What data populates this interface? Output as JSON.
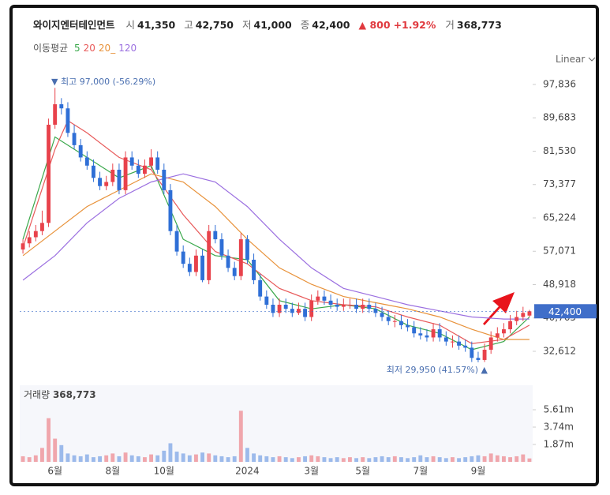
{
  "header": {
    "name": "와이지엔터테인먼트",
    "fields": [
      {
        "label": "시",
        "value": "41,350"
      },
      {
        "label": "고",
        "value": "42,750"
      },
      {
        "label": "저",
        "value": "41,000"
      },
      {
        "label": "종",
        "value": "42,400"
      }
    ],
    "change": "▲ 800",
    "change_pct": "+1.92%",
    "volume_label": "거",
    "volume": "368,773"
  },
  "scale_mode": "Linear",
  "chart_data": [
    {
      "type": "candlestick",
      "ma_label": "이동평균",
      "up_color": "#e8424b",
      "down_color": "#2f6fd6",
      "ylim": [
        25858,
        102081
      ],
      "yticks": [
        {
          "value": 97836,
          "label": "97,836"
        },
        {
          "value": 89683,
          "label": "89,683"
        },
        {
          "value": 81530,
          "label": "81,530"
        },
        {
          "value": 73377,
          "label": "73,377"
        },
        {
          "value": 65224,
          "label": "65,224"
        },
        {
          "value": 57071,
          "label": "57,071"
        },
        {
          "value": 48918,
          "label": "48,918"
        },
        {
          "value": 40765,
          "label": "40,765"
        },
        {
          "value": 32612,
          "label": "32,612"
        }
      ],
      "last_price": {
        "value": 42400,
        "label": "42,400",
        "color": "#3f6ec9"
      },
      "annotations": [
        "▼ 최고 97,000 (-56.29%)",
        "최저 29,950 (41.57%) ▲"
      ],
      "open": [
        57500,
        59000,
        60500,
        62000,
        64000,
        88000,
        93000,
        92000,
        86000,
        83000,
        80000,
        78000,
        75000,
        73000,
        74000,
        77000,
        72000,
        80000,
        78000,
        76000,
        78000,
        80000,
        77000,
        72000,
        62000,
        57000,
        54000,
        52000,
        56000,
        50000,
        62000,
        60000,
        56000,
        53000,
        51000,
        60000,
        55000,
        50000,
        46000,
        44000,
        42000,
        44000,
        43000,
        42000,
        43000,
        41000,
        45000,
        46000,
        45000,
        44000,
        43500,
        44000,
        44000,
        43000,
        44000,
        43000,
        42000,
        41000,
        40000,
        40000,
        39000,
        38500,
        37000,
        36500,
        36000,
        38000,
        36000,
        35000,
        35000,
        34000,
        33500,
        31000,
        30500,
        33000,
        36000,
        37000,
        38000,
        40000,
        41000,
        41350
      ],
      "high": [
        60000,
        62000,
        63500,
        67000,
        89500,
        97000,
        94500,
        93500,
        88000,
        84500,
        81500,
        79500,
        76500,
        75500,
        78500,
        78500,
        81500,
        81500,
        79500,
        79500,
        82000,
        81500,
        78500,
        73500,
        63500,
        58500,
        55500,
        57500,
        57500,
        63500,
        63500,
        61500,
        57500,
        54500,
        61500,
        61000,
        56500,
        51500,
        47500,
        45500,
        45500,
        45500,
        44500,
        44500,
        44500,
        46500,
        47500,
        47500,
        46500,
        45500,
        45500,
        45500,
        45500,
        45500,
        45500,
        44500,
        43500,
        42500,
        41500,
        41500,
        40500,
        40000,
        38500,
        38000,
        39500,
        39500,
        37500,
        36500,
        36500,
        35500,
        35000,
        32500,
        34500,
        37500,
        38500,
        39500,
        41500,
        42500,
        43500,
        42750
      ],
      "low": [
        56500,
        58000,
        59500,
        61000,
        63000,
        87000,
        90500,
        85000,
        82000,
        79000,
        77000,
        74000,
        72000,
        72000,
        73000,
        71000,
        71000,
        77000,
        75000,
        75000,
        77000,
        76000,
        71000,
        61000,
        56000,
        53000,
        51000,
        51000,
        49500,
        49000,
        59000,
        55000,
        52000,
        50000,
        50000,
        54000,
        49000,
        45000,
        43000,
        41000,
        41000,
        42000,
        41000,
        41500,
        40000,
        40000,
        44000,
        44000,
        43000,
        42500,
        42500,
        43000,
        42000,
        42000,
        42000,
        41000,
        40000,
        39000,
        38500,
        38000,
        37500,
        36000,
        35500,
        35000,
        35000,
        35000,
        34000,
        33500,
        33000,
        32500,
        30000,
        29950,
        30000,
        32000,
        35000,
        36000,
        37000,
        39000,
        40000,
        41000
      ],
      "close": [
        59000,
        60500,
        62000,
        64000,
        88000,
        93000,
        92000,
        86000,
        83000,
        80000,
        78000,
        75000,
        73000,
        74000,
        77000,
        72000,
        80000,
        78000,
        76000,
        78000,
        80000,
        77000,
        72000,
        62000,
        57000,
        54000,
        52000,
        56000,
        50000,
        62000,
        60000,
        56000,
        53000,
        51000,
        60000,
        55000,
        50000,
        46000,
        44000,
        42000,
        44000,
        43000,
        42000,
        43000,
        41000,
        45000,
        46000,
        45000,
        44000,
        43500,
        44000,
        44000,
        43000,
        44000,
        43000,
        42000,
        41000,
        40000,
        40000,
        39000,
        38500,
        37000,
        36500,
        36000,
        38000,
        36000,
        35000,
        35000,
        34000,
        33500,
        31000,
        30500,
        33000,
        36000,
        37000,
        38000,
        40000,
        41000,
        42000,
        42400
      ],
      "series": [
        {
          "name": "5",
          "color": "#3aa84b",
          "x": [
            0,
            5,
            10,
            15,
            20,
            25,
            30,
            35,
            40,
            45,
            50,
            55,
            60,
            65,
            70,
            75,
            79
          ],
          "values": [
            60000,
            85000,
            80000,
            75000,
            78000,
            60000,
            56000,
            55000,
            45000,
            43000,
            44000,
            43000,
            39000,
            37000,
            33000,
            35000,
            41000
          ]
        },
        {
          "name": "20",
          "color": "#e85a5a",
          "x": [
            0,
            5,
            7,
            10,
            15,
            20,
            25,
            30,
            35,
            40,
            45,
            50,
            55,
            60,
            65,
            70,
            75,
            79
          ],
          "values": [
            58000,
            82000,
            89000,
            86000,
            80000,
            77000,
            66000,
            57000,
            54000,
            48000,
            45000,
            44000,
            43500,
            41000,
            39000,
            34500,
            35500,
            39000
          ]
        },
        {
          "name": "20_",
          "color": "#e8923a",
          "x": [
            0,
            5,
            10,
            15,
            20,
            25,
            30,
            35,
            40,
            45,
            50,
            55,
            60,
            65,
            70,
            75,
            79
          ],
          "values": [
            56000,
            62000,
            68000,
            72000,
            76000,
            74000,
            68000,
            60000,
            53000,
            49000,
            46000,
            44500,
            43000,
            41000,
            38000,
            35500,
            35500
          ]
        },
        {
          "name": "120",
          "color": "#9b6fe0",
          "x": [
            0,
            5,
            10,
            15,
            20,
            25,
            30,
            35,
            40,
            45,
            50,
            55,
            60,
            65,
            70,
            75,
            79
          ],
          "values": [
            50000,
            56000,
            64000,
            70000,
            74000,
            76000,
            74000,
            68000,
            60000,
            53000,
            48000,
            46000,
            44000,
            42500,
            41000,
            40500,
            40500
          ]
        }
      ]
    },
    {
      "type": "bar",
      "title": "거래량",
      "current": "368,773",
      "ylim": [
        0,
        6800000
      ],
      "yticks": [
        {
          "value": 5610000,
          "label": "5.61m"
        },
        {
          "value": 3740000,
          "label": "3.74m"
        },
        {
          "value": 1870000,
          "label": "1.87m"
        }
      ],
      "categories": [
        null,
        null,
        null,
        null,
        null,
        "6월",
        null,
        null,
        null,
        null,
        null,
        null,
        null,
        null,
        "8월",
        null,
        null,
        null,
        null,
        null,
        null,
        null,
        "10월",
        null,
        null,
        null,
        null,
        null,
        null,
        null,
        null,
        null,
        null,
        null,
        null,
        "2024",
        null,
        null,
        null,
        null,
        null,
        null,
        null,
        null,
        null,
        "3월",
        null,
        null,
        null,
        null,
        null,
        null,
        null,
        "5월",
        null,
        null,
        null,
        null,
        null,
        null,
        null,
        null,
        "7월",
        null,
        null,
        null,
        null,
        null,
        null,
        null,
        null,
        "9월",
        null,
        null,
        null,
        null,
        null,
        null,
        null,
        null
      ],
      "values": [
        600000,
        500000,
        700000,
        1500000,
        4700000,
        2500000,
        1800000,
        900000,
        700000,
        600000,
        800000,
        500000,
        600000,
        700000,
        900000,
        600000,
        1000000,
        700000,
        600000,
        500000,
        800000,
        700000,
        1200000,
        2000000,
        1100000,
        900000,
        700000,
        800000,
        1000000,
        900000,
        700000,
        600000,
        500000,
        600000,
        5500000,
        1500000,
        900000,
        700000,
        600000,
        500000,
        600000,
        500000,
        400000,
        500000,
        600000,
        700000,
        600000,
        500000,
        400000,
        500000,
        400000,
        500000,
        400000,
        500000,
        400000,
        500000,
        600000,
        500000,
        600000,
        500000,
        400000,
        500000,
        700000,
        500000,
        600000,
        500000,
        400000,
        500000,
        400000,
        500000,
        600000,
        700000,
        600000,
        900000,
        700000,
        600000,
        500000,
        600000,
        800000,
        368773
      ]
    }
  ]
}
